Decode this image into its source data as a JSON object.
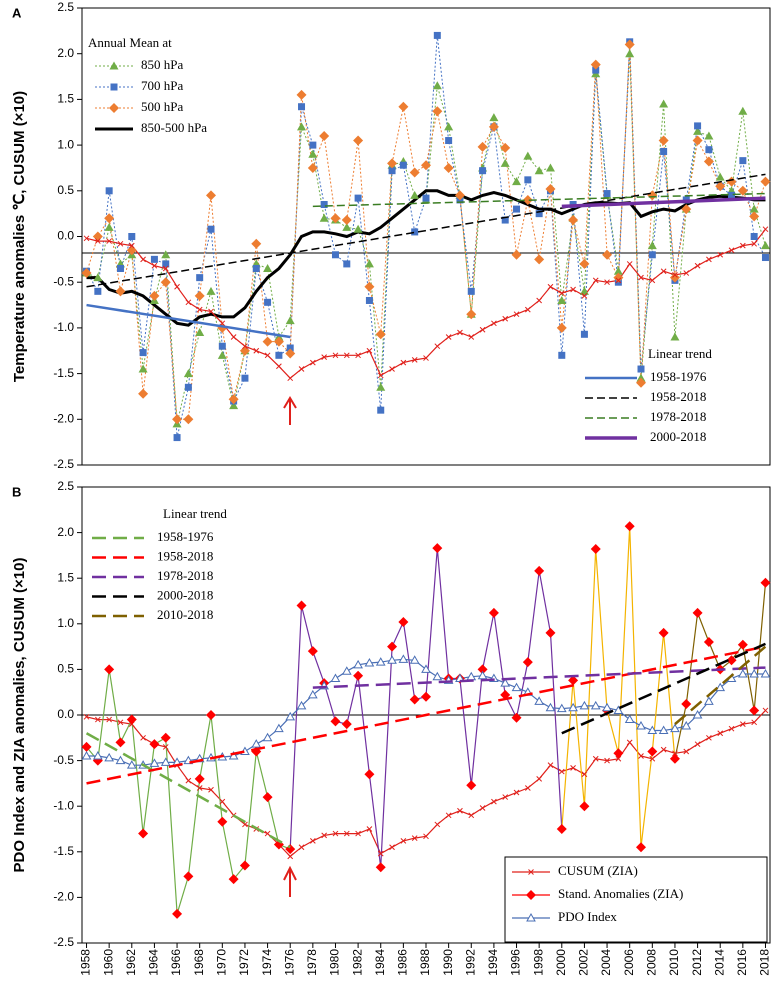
{
  "chart_data": [
    {
      "type": "line",
      "panel": "A",
      "ylabel": "Temperature anomalies ℃, CUSUM (×10)",
      "legend_title": "Annual Mean at",
      "trend_title": "Linear trend",
      "xlim": [
        1957.6,
        2018.4
      ],
      "ylim": [
        -2.5,
        2.5
      ],
      "yticks": [
        2.5,
        {
          "value": 2,
          "label": "2.0"
        },
        1.5,
        {
          "value": 1,
          "label": "1.0"
        },
        0.5,
        {
          "value": 0,
          "label": "0.0"
        },
        -0.5,
        {
          "value": -1,
          "label": "-1.0"
        },
        -1.5,
        {
          "value": -2,
          "label": "-2.0"
        },
        -2.5
      ],
      "hline": -0.18,
      "x": [
        1958,
        1959,
        1960,
        1961,
        1962,
        1963,
        1964,
        1965,
        1966,
        1967,
        1968,
        1969,
        1970,
        1971,
        1972,
        1973,
        1974,
        1975,
        1976,
        1977,
        1978,
        1979,
        1980,
        1981,
        1982,
        1983,
        1984,
        1985,
        1986,
        1987,
        1988,
        1989,
        1990,
        1991,
        1992,
        1993,
        1994,
        1995,
        1996,
        1997,
        1998,
        1999,
        2000,
        2001,
        2002,
        2003,
        2004,
        2005,
        2006,
        2007,
        2008,
        2009,
        2010,
        2011,
        2012,
        2013,
        2014,
        2015,
        2016,
        2017,
        2018
      ],
      "series": [
        {
          "name": "850 hPa",
          "color": "#70ad47",
          "marker": "triangle",
          "line": "dotted",
          "values": [
            -0.4,
            -0.45,
            0.1,
            -0.3,
            -0.2,
            -1.45,
            -0.7,
            -0.2,
            -2.05,
            -1.5,
            -1.05,
            -0.6,
            -1.3,
            -1.85,
            -1.25,
            -0.3,
            -0.35,
            -1.1,
            -0.92,
            1.2,
            0.9,
            0.2,
            0.18,
            0.1,
            0.08,
            -0.3,
            -1.65,
            0.78,
            0.82,
            0.45,
            0.4,
            1.65,
            1.2,
            0.45,
            -0.85,
            0.75,
            1.3,
            0.8,
            0.6,
            0.88,
            0.72,
            0.75,
            -0.7,
            0.2,
            -0.6,
            1.78,
            0.45,
            -0.38,
            2.0,
            -1.55,
            -0.1,
            1.45,
            -1.1,
            0.3,
            1.15,
            1.1,
            0.65,
            0.5,
            1.37,
            0.3,
            -0.1
          ]
        },
        {
          "name": "700 hPa",
          "color": "#4472c4",
          "marker": "square",
          "line": "dotted",
          "values": [
            -0.38,
            -0.6,
            0.5,
            -0.35,
            0.0,
            -1.27,
            -0.25,
            -0.3,
            -2.2,
            -1.65,
            -0.45,
            0.08,
            -1.2,
            -1.8,
            -1.55,
            -0.35,
            -0.72,
            -1.3,
            -1.22,
            1.42,
            1.0,
            0.35,
            -0.2,
            -0.3,
            0.42,
            -0.7,
            -1.9,
            0.72,
            0.78,
            0.05,
            0.42,
            2.2,
            1.05,
            0.4,
            -0.6,
            0.72,
            1.2,
            0.18,
            0.3,
            0.62,
            0.25,
            0.5,
            -1.3,
            0.35,
            -1.07,
            1.82,
            0.47,
            -0.5,
            2.13,
            -1.45,
            -0.2,
            0.93,
            -0.48,
            0.4,
            1.21,
            0.95,
            0.55,
            0.45,
            0.83,
            0.0,
            -0.23
          ]
        },
        {
          "name": "500 hPa",
          "color": "#ed7d31",
          "marker": "diamond",
          "line": "dotted",
          "values": [
            -0.4,
            0.0,
            0.2,
            -0.6,
            -0.15,
            -1.72,
            -0.65,
            -0.5,
            -2.0,
            -2.0,
            -0.65,
            0.45,
            -1.0,
            -1.78,
            -1.25,
            -0.08,
            -1.15,
            -1.15,
            -1.28,
            1.55,
            0.75,
            1.1,
            0.2,
            0.18,
            1.05,
            -0.55,
            -1.07,
            0.8,
            1.42,
            0.7,
            0.78,
            1.37,
            0.75,
            0.45,
            -0.85,
            0.98,
            1.2,
            0.97,
            -0.2,
            0.4,
            -0.25,
            0.52,
            -1.0,
            0.18,
            -0.3,
            1.88,
            -0.2,
            -0.45,
            2.1,
            -1.6,
            0.45,
            1.05,
            -0.45,
            0.3,
            1.05,
            0.82,
            0.55,
            0.6,
            0.5,
            0.22,
            0.6
          ]
        },
        {
          "name": "850-500 hPa",
          "color": "#000000",
          "marker": "none",
          "line": "thick",
          "values": [
            -0.45,
            -0.45,
            -0.58,
            -0.62,
            -0.6,
            -0.65,
            -0.75,
            -0.85,
            -0.95,
            -0.97,
            -0.88,
            -0.85,
            -0.88,
            -0.88,
            -0.78,
            -0.6,
            -0.45,
            -0.35,
            -0.2,
            0.0,
            0.05,
            0.05,
            0.03,
            0.0,
            0.05,
            0.03,
            0.1,
            0.2,
            0.3,
            0.4,
            0.5,
            0.5,
            0.45,
            0.45,
            0.4,
            0.45,
            0.48,
            0.45,
            0.4,
            0.35,
            0.3,
            0.3,
            0.25,
            0.3,
            0.35,
            0.37,
            0.37,
            0.36,
            0.37,
            0.22,
            0.27,
            0.3,
            0.28,
            0.35,
            0.4,
            0.43,
            0.44,
            0.43,
            0.42,
            0.4,
            0.4
          ]
        },
        {
          "color": "#e0201b",
          "marker": "x",
          "line": "solid",
          "values": [
            -0.02,
            -0.05,
            -0.05,
            -0.08,
            -0.1,
            -0.25,
            -0.32,
            -0.35,
            -0.55,
            -0.72,
            -0.8,
            -0.82,
            -0.95,
            -1.1,
            -1.2,
            -1.25,
            -1.3,
            -1.42,
            -1.55,
            -1.45,
            -1.38,
            -1.32,
            -1.3,
            -1.3,
            -1.3,
            -1.25,
            -1.52,
            -1.45,
            -1.38,
            -1.35,
            -1.33,
            -1.2,
            -1.1,
            -1.05,
            -1.1,
            -1.02,
            -0.95,
            -0.9,
            -0.85,
            -0.8,
            -0.7,
            -0.55,
            -0.62,
            -0.58,
            -0.65,
            -0.48,
            -0.5,
            -0.48,
            -0.3,
            -0.45,
            -0.48,
            -0.38,
            -0.42,
            -0.4,
            -0.32,
            -0.25,
            -0.2,
            -0.15,
            -0.1,
            -0.08,
            0.08
          ]
        }
      ],
      "trends": [
        {
          "name": "1958-1976",
          "color": "#4472c4",
          "style": "solid",
          "x": [
            1958,
            1976
          ],
          "values": [
            -0.75,
            -1.1
          ]
        },
        {
          "name": "1958-2018",
          "color": "#000000",
          "style": "dashed",
          "x": [
            1958,
            2018
          ],
          "values": [
            -0.55,
            0.68
          ]
        },
        {
          "name": "1978-2018",
          "color": "#3a7d22",
          "style": "dashed",
          "x": [
            1978,
            2018
          ],
          "values": [
            0.33,
            0.47
          ]
        },
        {
          "name": "2000-2018",
          "color": "#7030a0",
          "style": "thick",
          "x": [
            2000,
            2018
          ],
          "values": [
            0.33,
            0.42
          ]
        }
      ]
    },
    {
      "type": "line",
      "panel": "B",
      "ylabel": "PDO Index and ZIA anomalies, CUSUM (×10)",
      "trend_title": "Linear trend",
      "xlim": [
        1957.6,
        2018.4
      ],
      "ylim": [
        -2.5,
        2.5
      ],
      "yticks": [
        2.5,
        {
          "value": 2,
          "label": "2.0"
        },
        1.5,
        {
          "value": 1,
          "label": "1.0"
        },
        0.5,
        {
          "value": 0,
          "label": "0.0"
        },
        -0.5,
        {
          "value": -1,
          "label": "-1.0"
        },
        -1.5,
        {
          "value": -2,
          "label": "-2.0"
        },
        -2.5
      ],
      "xticks": [
        1958,
        1960,
        1962,
        1964,
        1966,
        1968,
        1970,
        1972,
        1974,
        1976,
        1978,
        1980,
        1982,
        1984,
        1986,
        1988,
        1990,
        1992,
        1994,
        1996,
        1998,
        2000,
        2002,
        2004,
        2006,
        2008,
        2010,
        2012,
        2014,
        2016,
        2018
      ],
      "hline": 0,
      "x": [
        1958,
        1959,
        1960,
        1961,
        1962,
        1963,
        1964,
        1965,
        1966,
        1967,
        1968,
        1969,
        1970,
        1971,
        1972,
        1973,
        1974,
        1975,
        1976,
        1977,
        1978,
        1979,
        1980,
        1981,
        1982,
        1983,
        1984,
        1985,
        1986,
        1987,
        1988,
        1989,
        1990,
        1991,
        1992,
        1993,
        1994,
        1995,
        1996,
        1997,
        1998,
        1999,
        2000,
        2001,
        2002,
        2003,
        2004,
        2005,
        2006,
        2007,
        2008,
        2009,
        2010,
        2011,
        2012,
        2013,
        2014,
        2015,
        2016,
        2017,
        2018
      ],
      "series": [
        {
          "name": "CUSUM (ZIA)",
          "color": "#e0201b",
          "marker": "x",
          "line": "solid",
          "values": [
            -0.02,
            -0.05,
            -0.05,
            -0.08,
            -0.1,
            -0.25,
            -0.32,
            -0.35,
            -0.55,
            -0.72,
            -0.8,
            -0.82,
            -0.95,
            -1.1,
            -1.2,
            -1.25,
            -1.3,
            -1.42,
            -1.55,
            -1.45,
            -1.38,
            -1.32,
            -1.3,
            -1.3,
            -1.3,
            -1.25,
            -1.52,
            -1.45,
            -1.38,
            -1.35,
            -1.33,
            -1.2,
            -1.1,
            -1.05,
            -1.1,
            -1.02,
            -0.95,
            -0.9,
            -0.85,
            -0.8,
            -0.7,
            -0.55,
            -0.62,
            -0.58,
            -0.65,
            -0.48,
            -0.5,
            -0.48,
            -0.3,
            -0.45,
            -0.48,
            -0.38,
            -0.42,
            -0.4,
            -0.32,
            -0.25,
            -0.2,
            -0.15,
            -0.1,
            -0.08,
            0.05
          ]
        },
        {
          "name": "Stand. Anomalies  (ZIA)",
          "color": "#ff0000",
          "marker": "diamond",
          "line": "segments",
          "segments": [
            {
              "from": 1958,
              "to": 1976,
              "color": "#70ad47"
            },
            {
              "from": 1976,
              "to": 2000,
              "color": "#7030a0"
            },
            {
              "from": 2000,
              "to": 2010,
              "color": "#f4b400"
            },
            {
              "from": 2010,
              "to": 2018,
              "color": "#7f6000"
            }
          ],
          "values": [
            -0.35,
            -0.5,
            0.5,
            -0.3,
            -0.05,
            -1.3,
            -0.32,
            -0.25,
            -2.18,
            -1.77,
            -0.7,
            0.0,
            -1.17,
            -1.8,
            -1.65,
            -0.4,
            -0.9,
            -1.42,
            -1.47,
            1.2,
            0.7,
            0.35,
            -0.07,
            -0.1,
            0.43,
            -0.65,
            -1.67,
            0.75,
            1.02,
            0.17,
            0.2,
            1.83,
            0.4,
            0.4,
            -0.77,
            0.5,
            1.12,
            0.22,
            -0.03,
            0.58,
            1.58,
            0.9,
            -1.25,
            0.38,
            -1.0,
            1.82,
            0.05,
            -0.42,
            2.07,
            -1.45,
            -0.4,
            0.9,
            -0.48,
            0.12,
            1.12,
            0.8,
            0.5,
            0.6,
            0.77,
            0.05,
            1.45
          ]
        },
        {
          "name": "PDO Index",
          "color": "#4a6fb5",
          "marker": "triangle-open",
          "line": "solid",
          "values": [
            -0.45,
            -0.45,
            -0.47,
            -0.5,
            -0.55,
            -0.55,
            -0.53,
            -0.52,
            -0.52,
            -0.5,
            -0.48,
            -0.47,
            -0.46,
            -0.45,
            -0.4,
            -0.32,
            -0.25,
            -0.15,
            -0.02,
            0.1,
            0.22,
            0.32,
            0.4,
            0.48,
            0.55,
            0.57,
            0.58,
            0.6,
            0.61,
            0.6,
            0.5,
            0.42,
            0.38,
            0.4,
            0.42,
            0.43,
            0.4,
            0.35,
            0.3,
            0.25,
            0.15,
            0.08,
            0.07,
            0.08,
            0.1,
            0.1,
            0.08,
            0.05,
            -0.05,
            -0.12,
            -0.17,
            -0.17,
            -0.15,
            -0.12,
            0.0,
            0.15,
            0.3,
            0.4,
            0.45,
            0.45,
            0.45
          ]
        }
      ],
      "trends": [
        {
          "name": "1958-1976",
          "color": "#70ad47",
          "style": "dashed",
          "x": [
            1958,
            1976
          ],
          "values": [
            -0.2,
            -1.45
          ]
        },
        {
          "name": "1958-2018",
          "color": "#ff0000",
          "style": "dashed",
          "x": [
            1958,
            2018
          ],
          "values": [
            -0.75,
            0.75
          ]
        },
        {
          "name": "1978-2018",
          "color": "#7030a0",
          "style": "dashed",
          "x": [
            1978,
            2018
          ],
          "values": [
            0.3,
            0.52
          ]
        },
        {
          "name": "2000-2018",
          "color": "#000000",
          "style": "dashed",
          "x": [
            2000,
            2018
          ],
          "values": [
            -0.2,
            0.78
          ]
        },
        {
          "name": "2010-2018",
          "color": "#7f6000",
          "style": "dashed",
          "x": [
            2010,
            2018
          ],
          "values": [
            -0.1,
            0.75
          ]
        }
      ]
    }
  ]
}
